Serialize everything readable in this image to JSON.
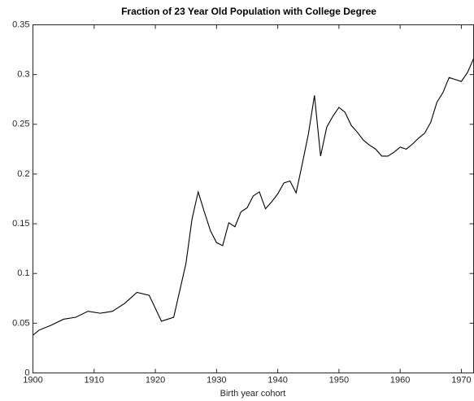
{
  "chart_data": {
    "type": "line",
    "title": "Fraction of 23 Year Old Population with College Degree",
    "x_label": "Birth year cohort",
    "x": [
      1900,
      1901,
      1903,
      1905,
      1907,
      1909,
      1911,
      1913,
      1915,
      1917,
      1919,
      1921,
      1923,
      1925,
      1926,
      1927,
      1928,
      1929,
      1930,
      1931,
      1932,
      1933,
      1934,
      1935,
      1936,
      1937,
      1938,
      1939,
      1940,
      1941,
      1942,
      1943,
      1944,
      1945,
      1946,
      1947,
      1948,
      1949,
      1950,
      1951,
      1952,
      1953,
      1954,
      1955,
      1956,
      1957,
      1958,
      1959,
      1960,
      1961,
      1962,
      1963,
      1964,
      1965,
      1966,
      1967,
      1968,
      1969,
      1970,
      1971,
      1972
    ],
    "series": [
      {
        "color": "#000000",
        "values": [
          0.038,
          0.043,
          0.048,
          0.054,
          0.056,
          0.062,
          0.06,
          0.062,
          0.07,
          0.081,
          0.078,
          0.052,
          0.056,
          0.11,
          0.155,
          0.182,
          0.162,
          0.143,
          0.131,
          0.128,
          0.151,
          0.147,
          0.162,
          0.166,
          0.178,
          0.182,
          0.165,
          0.172,
          0.18,
          0.191,
          0.193,
          0.181,
          0.21,
          0.24,
          0.279,
          0.218,
          0.247,
          0.258,
          0.267,
          0.262,
          0.249,
          0.242,
          0.234,
          0.229,
          0.225,
          0.218,
          0.218,
          0.222,
          0.227,
          0.225,
          0.23,
          0.236,
          0.241,
          0.252,
          0.272,
          0.282,
          0.297,
          0.295,
          0.293,
          0.302,
          0.316
        ]
      }
    ],
    "xlim": [
      1900,
      1972
    ],
    "ylim": [
      0,
      0.35
    ],
    "xticks": [
      1900,
      1910,
      1920,
      1930,
      1940,
      1950,
      1960,
      1970
    ],
    "yticks": [
      0,
      0.05,
      0.1,
      0.15,
      0.2,
      0.25,
      0.3,
      0.35
    ],
    "grid": false
  }
}
